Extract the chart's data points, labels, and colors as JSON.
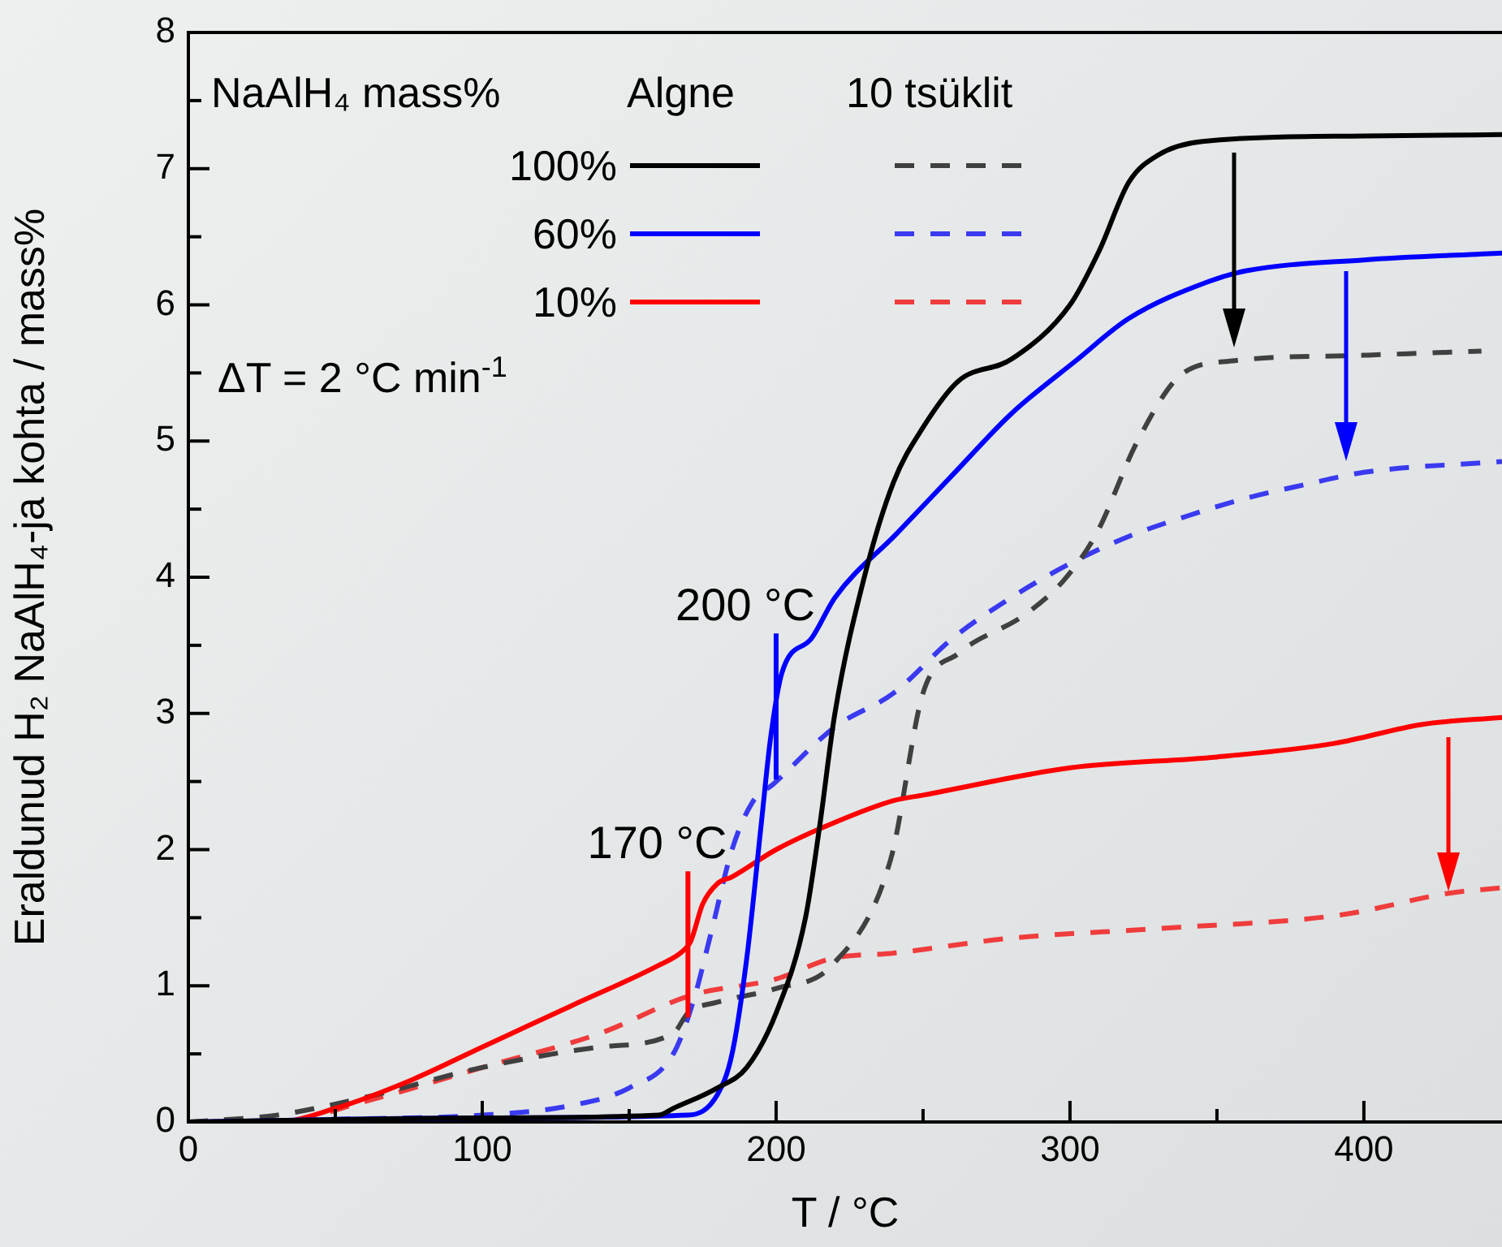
{
  "chart_data": {
    "type": "line",
    "xlabel": "T / °C",
    "ylabel": "Eraldunud H₂ NaAlH₄-ja kohta / mass%",
    "legend_title": "NaAlH₄ mass%",
    "legend": "top left",
    "marker": "none",
    "grid": false,
    "xlim": [
      0,
      447
    ],
    "xticks": [
      0,
      {
        "value": 50,
        "label": null
      },
      100,
      {
        "value": 150,
        "label": null
      },
      200,
      {
        "value": 250,
        "label": null
      },
      300,
      {
        "value": 350,
        "label": null
      },
      400
    ],
    "ylim": [
      0,
      8
    ],
    "yticks": [
      0,
      {
        "value": 0.5,
        "label": null
      },
      1,
      {
        "value": 1.5,
        "label": null
      },
      2,
      {
        "value": 2.5,
        "label": null
      },
      3,
      {
        "value": 3.5,
        "label": null
      },
      4,
      {
        "value": 4.5,
        "label": null
      },
      5,
      {
        "value": 5.5,
        "label": null
      },
      6,
      {
        "value": 6.5,
        "label": null
      },
      7,
      {
        "value": 7.5,
        "label": null
      },
      8
    ],
    "annotations": [
      "Algne",
      "10 tsüklit",
      "ΔT = 2 °C min$^{-1}$"
    ],
    "ref_lines": [
      {
        "axis": "x",
        "value": 200,
        "label": "200 °C",
        "color": "#0000ff"
      },
      {
        "axis": "x",
        "value": 170,
        "label": "170 °C",
        "color": "#ff0000"
      }
    ],
    "series": [
      {
        "name": "100%",
        "color": "#000000",
        "line_style": "solid",
        "x": [
          0,
          100,
          160,
          165,
          180,
          190,
          200,
          210,
          215,
          220,
          230,
          240,
          250,
          262,
          280,
          300,
          310,
          320,
          330,
          345,
          400,
          447
        ],
        "values": [
          0,
          0.03,
          0.05,
          0.1,
          0.25,
          0.4,
          0.8,
          1.5,
          2.2,
          3.0,
          4.0,
          4.7,
          5.1,
          5.44,
          5.6,
          6.0,
          6.4,
          6.9,
          7.1,
          7.2,
          7.24,
          7.25
        ]
      },
      {
        "name": "60%",
        "color": "#0000ff",
        "line_style": "solid",
        "x": [
          0,
          100,
          170,
          180,
          185,
          190,
          195,
          198,
          202,
          212,
          220,
          241,
          260,
          280,
          302,
          320,
          347,
          360,
          400,
          447
        ],
        "values": [
          0,
          0.03,
          0.05,
          0.2,
          0.5,
          1.2,
          2.2,
          2.8,
          3.3,
          3.55,
          3.85,
          4.32,
          4.75,
          5.2,
          5.59,
          5.9,
          6.17,
          6.25,
          6.33,
          6.38
        ]
      },
      {
        "name": "10%",
        "color": "#ff0000",
        "line_style": "solid",
        "x": [
          0,
          30,
          50,
          75,
          100,
          130,
          160,
          168,
          171,
          175,
          180,
          185,
          200,
          220,
          240,
          250,
          300,
          350,
          390,
          420,
          447
        ],
        "values": [
          0,
          0,
          0.1,
          0.3,
          0.55,
          0.85,
          1.15,
          1.25,
          1.33,
          1.6,
          1.75,
          1.8,
          2.0,
          2.2,
          2.36,
          2.4,
          2.6,
          2.68,
          2.78,
          2.92,
          2.97
        ]
      },
      {
        "color": "#404040",
        "line_style": "dashed",
        "x": [
          0,
          30,
          60,
          100,
          140,
          165,
          170,
          180,
          200,
          219,
          239,
          250,
          262,
          285,
          298,
          309,
          323,
          338,
          356,
          400,
          440
        ],
        "values": [
          0,
          0.05,
          0.18,
          0.4,
          0.55,
          0.65,
          0.8,
          0.88,
          0.98,
          1.15,
          1.93,
          3.15,
          3.44,
          3.73,
          3.98,
          4.32,
          5.0,
          5.49,
          5.59,
          5.63,
          5.66
        ]
      },
      {
        "color": "#3a3af0",
        "line_style": "dashed",
        "x": [
          0,
          50,
          100,
          130,
          150,
          165,
          172,
          178,
          185,
          192,
          199,
          220,
          240,
          260,
          280,
          300,
          320,
          340,
          360,
          380,
          400,
          447
        ],
        "values": [
          0,
          0.02,
          0.05,
          0.12,
          0.25,
          0.5,
          0.9,
          1.4,
          2.0,
          2.35,
          2.48,
          2.9,
          3.15,
          3.55,
          3.85,
          4.1,
          4.3,
          4.45,
          4.58,
          4.68,
          4.77,
          4.85
        ]
      },
      {
        "color": "#f03c3c",
        "line_style": "dashed",
        "x": [
          0,
          30,
          60,
          100,
          140,
          171,
          200,
          219,
          240,
          280,
          330,
          392,
          429,
          447
        ],
        "values": [
          0,
          0,
          0.15,
          0.4,
          0.65,
          0.93,
          1.05,
          1.2,
          1.24,
          1.35,
          1.42,
          1.52,
          1.68,
          1.72
        ]
      }
    ]
  }
}
